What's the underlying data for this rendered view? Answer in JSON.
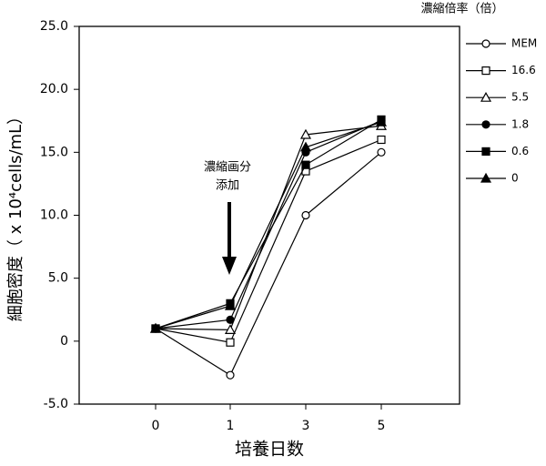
{
  "chart_data": {
    "type": "line",
    "x_label": "培養日数",
    "y_label": "細胞密度（ x 10⁴cells/mL）",
    "legend_title": "濃縮倍率（倍）",
    "annotation": [
      "濃縮画分",
      "添加"
    ],
    "categories": [
      "0",
      "1",
      "3",
      "5"
    ],
    "ylim": [
      -5,
      25
    ],
    "yticks": [
      {
        "value": -5,
        "label": "-5.0"
      },
      0,
      {
        "value": 5,
        "label": "5.0"
      },
      {
        "value": 10,
        "label": "10.0"
      },
      {
        "value": 15,
        "label": "15.0"
      },
      {
        "value": 20,
        "label": "20.0"
      },
      {
        "value": 25,
        "label": "25.0"
      }
    ],
    "legend_position": "right",
    "series": [
      {
        "name": "MEM",
        "color": "#000000",
        "marker": "circle",
        "filled": false,
        "values": [
          1.0,
          -2.7,
          10.0,
          15.0
        ]
      },
      {
        "name": "16.6",
        "color": "#000000",
        "marker": "square",
        "filled": false,
        "values": [
          1.0,
          -0.1,
          13.5,
          16.0
        ]
      },
      {
        "name": "5.5",
        "color": "#000000",
        "marker": "triangle",
        "filled": false,
        "values": [
          1.0,
          0.9,
          16.4,
          17.1
        ]
      },
      {
        "name": "1.8",
        "color": "#000000",
        "marker": "circle",
        "filled": true,
        "values": [
          1.0,
          1.7,
          15.0,
          17.5
        ]
      },
      {
        "name": "0.6",
        "color": "#000000",
        "marker": "square",
        "filled": true,
        "values": [
          1.0,
          3.0,
          14.0,
          17.6
        ]
      },
      {
        "name": "0",
        "color": "#000000",
        "marker": "triangle",
        "filled": true,
        "values": [
          1.0,
          2.8,
          15.4,
          17.4
        ]
      }
    ]
  }
}
